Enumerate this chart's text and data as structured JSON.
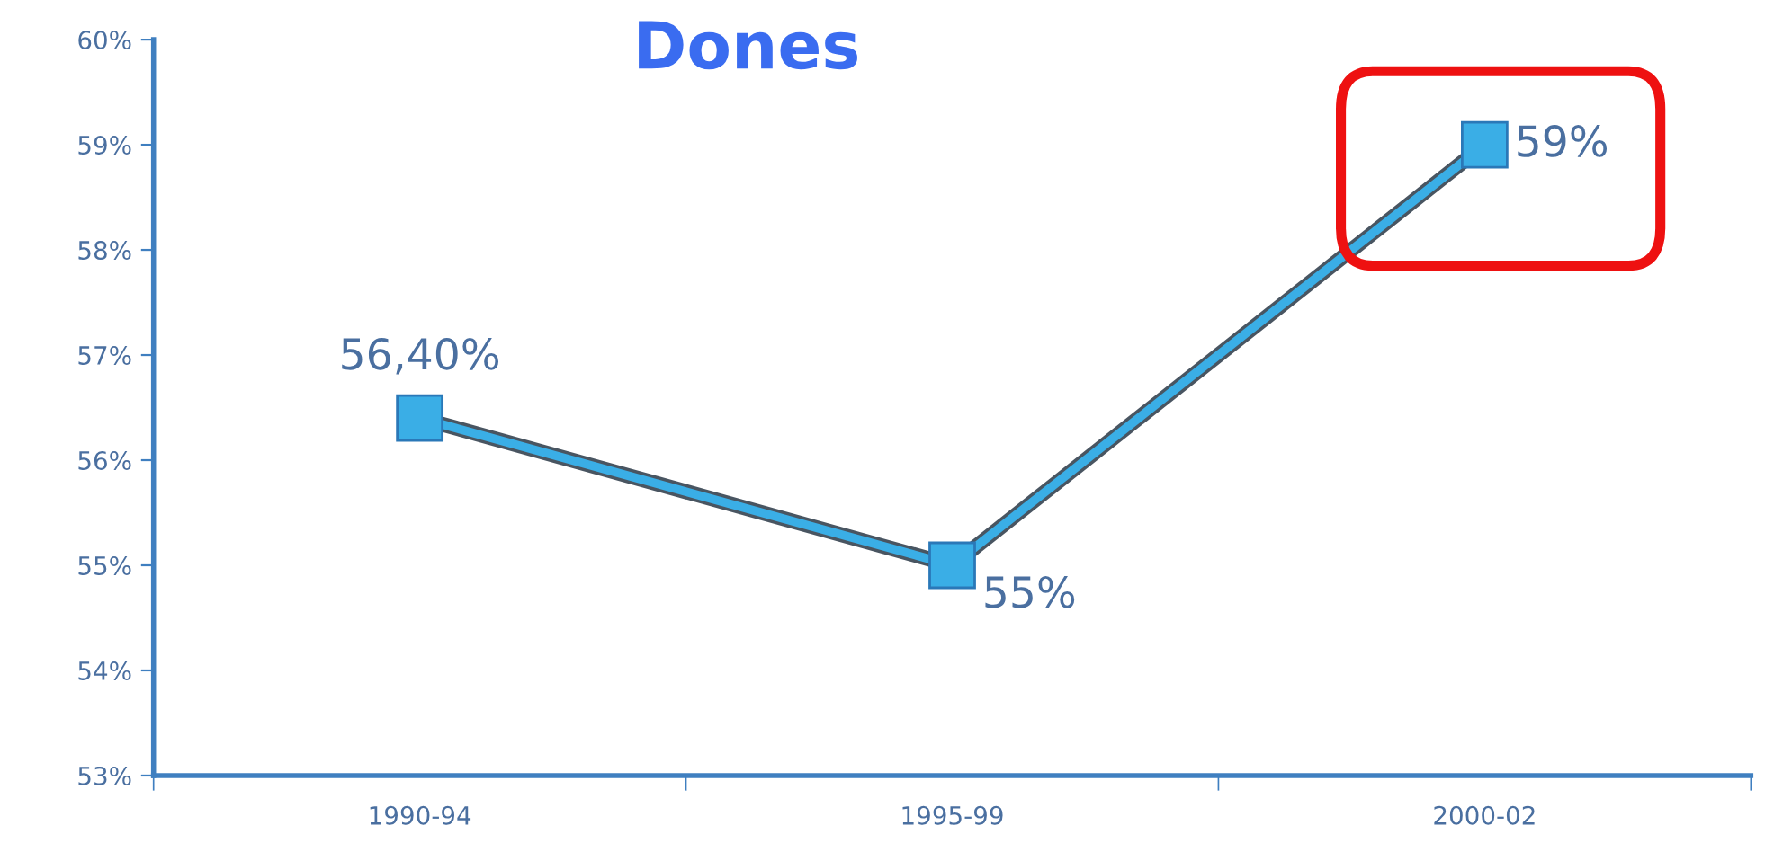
{
  "chart_data": {
    "type": "line",
    "title": "Dones",
    "categories": [
      "1990-94",
      "1995-99",
      "2000-02"
    ],
    "series": [
      {
        "color": "#3aaee6",
        "values": [
          56.4,
          55,
          59
        ],
        "value_labels": [
          "56,40%",
          "55%",
          "59%"
        ]
      }
    ],
    "ylim": [
      53,
      60
    ],
    "yticks": [
      {
        "value": 53,
        "label": "53%"
      },
      {
        "value": 54,
        "label": "54%"
      },
      {
        "value": 55,
        "label": "55%"
      },
      {
        "value": 56,
        "label": "56%"
      },
      {
        "value": 57,
        "label": "57%"
      },
      {
        "value": 58,
        "label": "58%"
      },
      {
        "value": 59,
        "label": "59%"
      },
      {
        "value": 60,
        "label": "60%"
      }
    ],
    "marker": "square",
    "line_style": "solid",
    "grid": false,
    "legend": false
  }
}
